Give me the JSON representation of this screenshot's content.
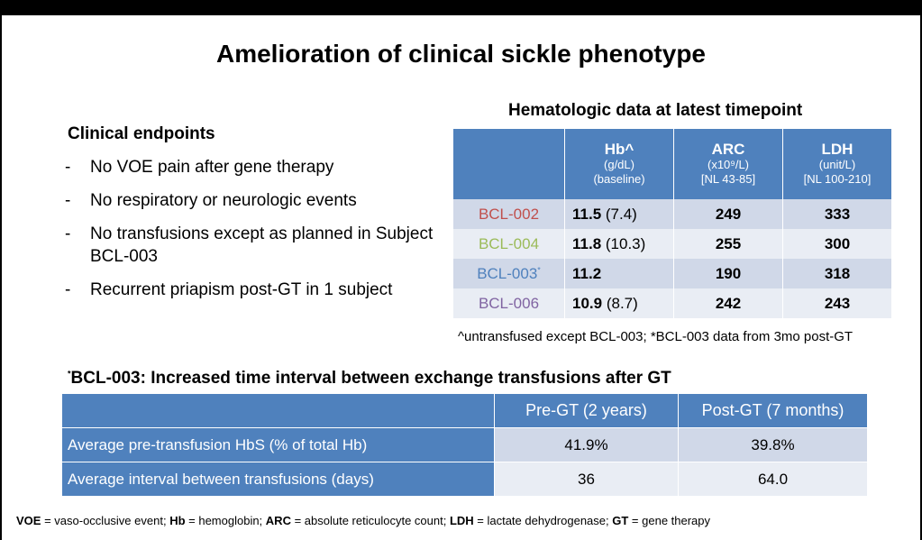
{
  "title": "Amelioration of clinical sickle phenotype",
  "clinical": {
    "heading": "Clinical endpoints",
    "items": [
      "No VOE pain after gene therapy",
      "No respiratory or neurologic events",
      "No transfusions except as planned in Subject BCL-003",
      "Recurrent priapism post-GT in 1 subject"
    ]
  },
  "hema": {
    "heading": "Hematologic data at latest timepoint",
    "columns": [
      {
        "name": "Hb^",
        "unit": "(g/dL)",
        "sub": "(baseline)"
      },
      {
        "name": "ARC",
        "unit": "(x10⁹/L)",
        "sub": "[NL 43-85]"
      },
      {
        "name": "LDH",
        "unit": "(unit/L)",
        "sub": "[NL 100-210]"
      }
    ],
    "rows": [
      {
        "id": "BCL-002",
        "color": "#c0504d",
        "star": "",
        "hb": "11.5",
        "hb_base": "(7.4)",
        "arc": "249",
        "ldh": "333"
      },
      {
        "id": "BCL-004",
        "color": "#9bbb59",
        "star": "",
        "hb": "11.8",
        "hb_base": "(10.3)",
        "arc": "255",
        "ldh": "300"
      },
      {
        "id": "BCL-003",
        "color": "#4f81bd",
        "star": "*",
        "hb": "11.2",
        "hb_base": "",
        "arc": "190",
        "ldh": "318"
      },
      {
        "id": "BCL-006",
        "color": "#8064a2",
        "star": "",
        "hb": "10.9",
        "hb_base": "(8.7)",
        "arc": "242",
        "ldh": "243"
      }
    ],
    "footnote": "^untransfused except BCL-003; *BCL-003 data from 3mo post-GT"
  },
  "transfusion": {
    "heading_star": "*",
    "heading": "BCL-003:  Increased time interval between exchange transfusions after GT",
    "columns": [
      "Pre-GT  (2 years)",
      "Post-GT  (7 months)"
    ],
    "rows": [
      {
        "label": "Average pre-transfusion HbS  (% of total Hb)",
        "pre": "41.9%",
        "post": "39.8%"
      },
      {
        "label": "Average interval between transfusions (days)",
        "pre": "36",
        "post": "64.0"
      }
    ]
  },
  "abbrev": [
    {
      "term": "VOE",
      "def": " = vaso-occlusive event; "
    },
    {
      "term": "Hb",
      "def": " = hemoglobin; "
    },
    {
      "term": "ARC",
      "def": " = absolute reticulocyte count; "
    },
    {
      "term": "LDH",
      "def": " = lactate dehydrogenase; "
    },
    {
      "term": "GT",
      "def": " = gene therapy"
    }
  ]
}
